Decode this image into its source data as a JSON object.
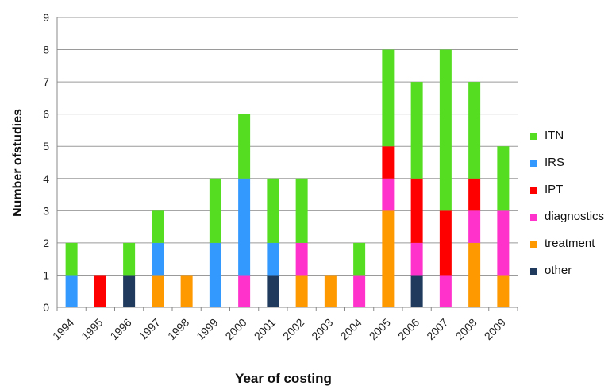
{
  "chart_data": {
    "type": "bar",
    "stacked": true,
    "xlabel": "Year of costing",
    "ylabel": "Number ofstudies",
    "ylim": [
      0,
      9
    ],
    "yticks": [
      "0",
      "1",
      "2",
      "3",
      "4",
      "5",
      "6",
      "7",
      "8",
      "9"
    ],
    "grid": true,
    "legend_position": "right",
    "categories": [
      "1994",
      "1995",
      "1996",
      "1997",
      "1998",
      "1999",
      "2000",
      "2001",
      "2002",
      "2003",
      "2004",
      "2005",
      "2006",
      "2007",
      "2008",
      "2009"
    ],
    "series": [
      {
        "name": "other",
        "color": "#1f3a5c",
        "values": [
          0,
          0,
          1,
          0,
          0,
          0,
          0,
          1,
          0,
          0,
          0,
          0,
          1,
          0,
          0,
          0
        ]
      },
      {
        "name": "treatment",
        "color": "#ff9900",
        "values": [
          0,
          0,
          0,
          1,
          1,
          0,
          0,
          0,
          1,
          1,
          0,
          3,
          0,
          0,
          2,
          1
        ]
      },
      {
        "name": "diagnostics",
        "color": "#ff33cc",
        "values": [
          0,
          0,
          0,
          0,
          0,
          0,
          1,
          0,
          1,
          0,
          1,
          1,
          1,
          1,
          1,
          2
        ]
      },
      {
        "name": "IPT",
        "color": "#ff0000",
        "values": [
          0,
          1,
          0,
          0,
          0,
          0,
          0,
          0,
          0,
          0,
          0,
          1,
          2,
          2,
          1,
          0
        ]
      },
      {
        "name": "IRS",
        "color": "#3399ff",
        "values": [
          1,
          0,
          0,
          1,
          0,
          2,
          3,
          1,
          0,
          0,
          0,
          0,
          0,
          0,
          0,
          0
        ]
      },
      {
        "name": "ITN",
        "color": "#55dd22",
        "values": [
          1,
          0,
          1,
          1,
          0,
          2,
          2,
          2,
          2,
          0,
          1,
          3,
          3,
          5,
          3,
          2
        ]
      }
    ]
  },
  "legend": [
    {
      "label": "ITN",
      "color": "#55dd22"
    },
    {
      "label": "IRS",
      "color": "#3399ff"
    },
    {
      "label": "IPT",
      "color": "#ff0000"
    },
    {
      "label": "diagnostics",
      "color": "#ff33cc"
    },
    {
      "label": "treatment",
      "color": "#ff9900"
    },
    {
      "label": "other",
      "color": "#1f3a5c"
    }
  ]
}
